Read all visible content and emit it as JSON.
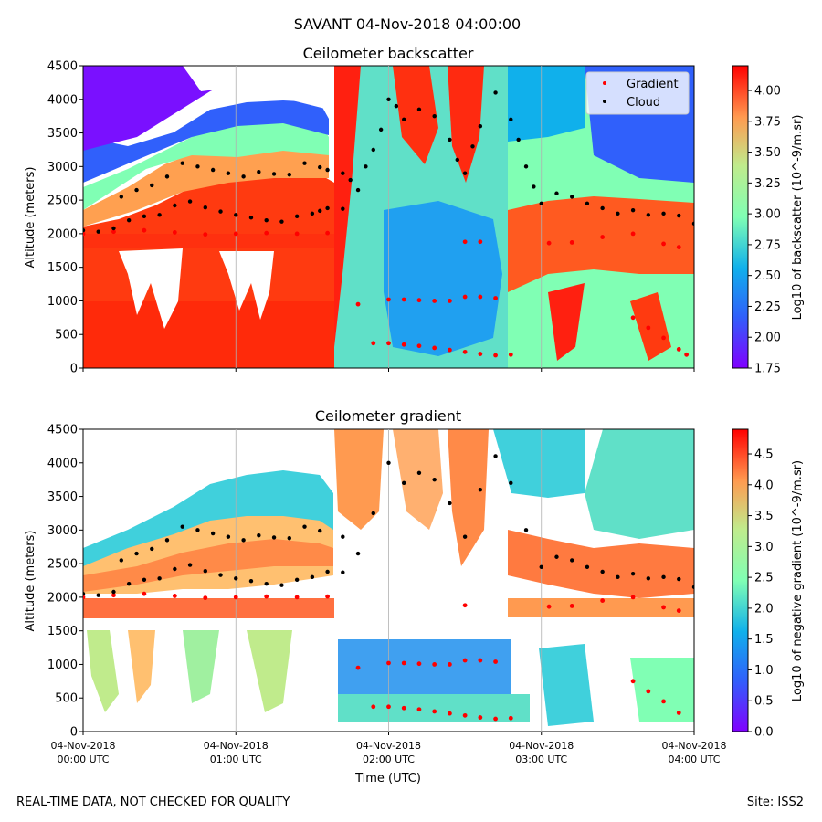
{
  "figure": {
    "suptitle": "SAVANT 04-Nov-2018 04:00:00",
    "footer_left": "REAL-TIME DATA, NOT CHECKED FOR QUALITY",
    "footer_right": "Site: ISS2"
  },
  "chart_data": [
    {
      "type": "heatmap",
      "title": "Ceilometer backscatter",
      "xlabel": "",
      "ylabel": "Altitude (meters)",
      "ylim": [
        0,
        4500
      ],
      "y_ticks": [
        "0",
        "500",
        "1000",
        "1500",
        "2000",
        "2500",
        "3000",
        "3500",
        "4000",
        "4500"
      ],
      "x_ticks": [
        {
          "date": "04-Nov-2018",
          "time": "00:00 UTC"
        },
        {
          "date": "04-Nov-2018",
          "time": "01:00 UTC"
        },
        {
          "date": "04-Nov-2018",
          "time": "02:00 UTC"
        },
        {
          "date": "04-Nov-2018",
          "time": "03:00 UTC"
        },
        {
          "date": "04-Nov-2018",
          "time": "04:00 UTC"
        }
      ],
      "xlim_hours_utc": [
        0,
        4
      ],
      "grid": "vertical lines at hourly ticks",
      "colorbar": {
        "label": "Log10 of backscatter (10^-9/m.sr)",
        "range": [
          1.75,
          4.2
        ],
        "ticks": [
          "1.75",
          "2.00",
          "2.25",
          "2.50",
          "2.75",
          "3.00",
          "3.25",
          "3.50",
          "3.75",
          "4.00"
        ],
        "colormap": "rainbow"
      },
      "legend": {
        "placement": "top-right",
        "entries": [
          {
            "label": "Gradient",
            "color": "#ff0000"
          },
          {
            "label": "Cloud",
            "color": "#000000"
          }
        ]
      },
      "series": [
        {
          "name": "Cloud",
          "color": "#000000",
          "points": [
            [
              0.0,
              2050
            ],
            [
              0.1,
              2030
            ],
            [
              0.2,
              2080
            ],
            [
              0.3,
              2200
            ],
            [
              0.4,
              2260
            ],
            [
              0.5,
              2280
            ],
            [
              0.6,
              2420
            ],
            [
              0.7,
              2480
            ],
            [
              0.8,
              2390
            ],
            [
              0.9,
              2330
            ],
            [
              1.0,
              2280
            ],
            [
              1.1,
              2240
            ],
            [
              1.2,
              2200
            ],
            [
              1.3,
              2180
            ],
            [
              1.4,
              2260
            ],
            [
              1.5,
              2300
            ],
            [
              1.55,
              2340
            ],
            [
              1.6,
              2380
            ],
            [
              1.7,
              2370
            ],
            [
              0.25,
              2550
            ],
            [
              0.35,
              2650
            ],
            [
              0.45,
              2720
            ],
            [
              0.55,
              2850
            ],
            [
              0.65,
              3050
            ],
            [
              0.75,
              3000
            ],
            [
              0.85,
              2950
            ],
            [
              0.95,
              2900
            ],
            [
              1.05,
              2850
            ],
            [
              1.15,
              2920
            ],
            [
              1.25,
              2890
            ],
            [
              1.35,
              2880
            ],
            [
              1.45,
              3050
            ],
            [
              1.55,
              2990
            ],
            [
              1.6,
              2950
            ],
            [
              1.7,
              2900
            ],
            [
              1.75,
              2800
            ],
            [
              1.8,
              2650
            ],
            [
              1.85,
              3000
            ],
            [
              1.9,
              3250
            ],
            [
              1.95,
              3550
            ],
            [
              2.0,
              4000
            ],
            [
              2.05,
              3900
            ],
            [
              2.1,
              3700
            ],
            [
              2.2,
              3850
            ],
            [
              2.3,
              3750
            ],
            [
              2.4,
              3400
            ],
            [
              2.45,
              3100
            ],
            [
              2.5,
              2900
            ],
            [
              2.55,
              3300
            ],
            [
              2.6,
              3600
            ],
            [
              2.7,
              4100
            ],
            [
              2.8,
              3700
            ],
            [
              2.85,
              3400
            ],
            [
              2.9,
              3000
            ],
            [
              2.95,
              2700
            ],
            [
              3.0,
              2450
            ],
            [
              3.1,
              2600
            ],
            [
              3.2,
              2550
            ],
            [
              3.3,
              2450
            ],
            [
              3.4,
              2380
            ],
            [
              3.5,
              2300
            ],
            [
              3.6,
              2350
            ],
            [
              3.7,
              2280
            ],
            [
              3.8,
              2300
            ],
            [
              3.9,
              2270
            ],
            [
              4.0,
              2150
            ]
          ]
        },
        {
          "name": "Gradient",
          "color": "#ff0000",
          "points": [
            [
              0.0,
              2000
            ],
            [
              0.2,
              2030
            ],
            [
              0.4,
              2050
            ],
            [
              0.6,
              2020
            ],
            [
              0.8,
              1990
            ],
            [
              1.0,
              2000
            ],
            [
              1.2,
              2010
            ],
            [
              1.4,
              2000
            ],
            [
              1.6,
              2010
            ],
            [
              1.8,
              950
            ],
            [
              2.0,
              1020
            ],
            [
              2.1,
              1020
            ],
            [
              2.2,
              1010
            ],
            [
              2.3,
              1000
            ],
            [
              2.4,
              1000
            ],
            [
              2.5,
              1060
            ],
            [
              2.6,
              1060
            ],
            [
              2.7,
              1040
            ],
            [
              1.9,
              370
            ],
            [
              2.0,
              370
            ],
            [
              2.1,
              350
            ],
            [
              2.2,
              330
            ],
            [
              2.3,
              300
            ],
            [
              2.4,
              270
            ],
            [
              2.5,
              240
            ],
            [
              2.6,
              210
            ],
            [
              2.7,
              190
            ],
            [
              2.8,
              200
            ],
            [
              2.5,
              1880
            ],
            [
              2.6,
              1880
            ],
            [
              3.05,
              1860
            ],
            [
              3.2,
              1870
            ],
            [
              3.4,
              1950
            ],
            [
              3.6,
              2000
            ],
            [
              3.8,
              1850
            ],
            [
              3.9,
              1800
            ],
            [
              3.6,
              750
            ],
            [
              3.7,
              600
            ],
            [
              3.8,
              450
            ],
            [
              3.9,
              280
            ],
            [
              3.95,
              200
            ]
          ]
        }
      ]
    },
    {
      "type": "heatmap",
      "title": "Ceilometer gradient",
      "xlabel": "Time (UTC)",
      "ylabel": "Altitude (meters)",
      "ylim": [
        0,
        4500
      ],
      "y_ticks": [
        "0",
        "500",
        "1000",
        "1500",
        "2000",
        "2500",
        "3000",
        "3500",
        "4000",
        "4500"
      ],
      "x_ticks": [
        {
          "date": "04-Nov-2018",
          "time": "00:00 UTC"
        },
        {
          "date": "04-Nov-2018",
          "time": "01:00 UTC"
        },
        {
          "date": "04-Nov-2018",
          "time": "02:00 UTC"
        },
        {
          "date": "04-Nov-2018",
          "time": "03:00 UTC"
        },
        {
          "date": "04-Nov-2018",
          "time": "04:00 UTC"
        }
      ],
      "xlim_hours_utc": [
        0,
        4
      ],
      "grid": "vertical lines at hourly ticks",
      "colorbar": {
        "label": "Log10 of negative gradient (10^-9/m.sr)",
        "range": [
          0.0,
          4.9
        ],
        "ticks": [
          "0.0",
          "0.5",
          "1.0",
          "1.5",
          "2.0",
          "2.5",
          "3.0",
          "3.5",
          "4.0",
          "4.5"
        ],
        "colormap": "rainbow"
      },
      "series": [
        {
          "name": "Cloud",
          "color": "#000000",
          "points": [
            [
              0.0,
              2050
            ],
            [
              0.1,
              2030
            ],
            [
              0.2,
              2080
            ],
            [
              0.3,
              2200
            ],
            [
              0.4,
              2260
            ],
            [
              0.5,
              2280
            ],
            [
              0.6,
              2420
            ],
            [
              0.7,
              2480
            ],
            [
              0.8,
              2390
            ],
            [
              0.9,
              2330
            ],
            [
              1.0,
              2280
            ],
            [
              1.1,
              2240
            ],
            [
              1.2,
              2200
            ],
            [
              1.3,
              2180
            ],
            [
              1.4,
              2260
            ],
            [
              1.5,
              2300
            ],
            [
              1.6,
              2380
            ],
            [
              1.7,
              2370
            ],
            [
              0.25,
              2550
            ],
            [
              0.35,
              2650
            ],
            [
              0.45,
              2720
            ],
            [
              0.55,
              2850
            ],
            [
              0.65,
              3050
            ],
            [
              0.75,
              3000
            ],
            [
              0.85,
              2950
            ],
            [
              0.95,
              2900
            ],
            [
              1.05,
              2850
            ],
            [
              1.15,
              2920
            ],
            [
              1.25,
              2890
            ],
            [
              1.35,
              2880
            ],
            [
              1.45,
              3050
            ],
            [
              1.55,
              2990
            ],
            [
              1.7,
              2900
            ],
            [
              1.8,
              2650
            ],
            [
              1.9,
              3250
            ],
            [
              2.0,
              4000
            ],
            [
              2.1,
              3700
            ],
            [
              2.2,
              3850
            ],
            [
              2.3,
              3750
            ],
            [
              2.4,
              3400
            ],
            [
              2.5,
              2900
            ],
            [
              2.6,
              3600
            ],
            [
              2.7,
              4100
            ],
            [
              2.8,
              3700
            ],
            [
              2.9,
              3000
            ],
            [
              3.0,
              2450
            ],
            [
              3.1,
              2600
            ],
            [
              3.2,
              2550
            ],
            [
              3.3,
              2450
            ],
            [
              3.4,
              2380
            ],
            [
              3.5,
              2300
            ],
            [
              3.6,
              2350
            ],
            [
              3.7,
              2280
            ],
            [
              3.8,
              2300
            ],
            [
              3.9,
              2270
            ],
            [
              4.0,
              2150
            ]
          ]
        },
        {
          "name": "Gradient",
          "color": "#ff0000",
          "points": [
            [
              0.0,
              2000
            ],
            [
              0.2,
              2030
            ],
            [
              0.4,
              2050
            ],
            [
              0.6,
              2020
            ],
            [
              0.8,
              1990
            ],
            [
              1.0,
              2000
            ],
            [
              1.2,
              2010
            ],
            [
              1.4,
              2000
            ],
            [
              1.6,
              2010
            ],
            [
              1.8,
              950
            ],
            [
              2.0,
              1020
            ],
            [
              2.1,
              1020
            ],
            [
              2.2,
              1010
            ],
            [
              2.3,
              1000
            ],
            [
              2.4,
              1000
            ],
            [
              2.5,
              1060
            ],
            [
              2.6,
              1060
            ],
            [
              2.7,
              1040
            ],
            [
              1.9,
              370
            ],
            [
              2.0,
              370
            ],
            [
              2.1,
              350
            ],
            [
              2.2,
              330
            ],
            [
              2.3,
              300
            ],
            [
              2.4,
              270
            ],
            [
              2.5,
              240
            ],
            [
              2.6,
              210
            ],
            [
              2.7,
              190
            ],
            [
              2.8,
              200
            ],
            [
              2.5,
              1880
            ],
            [
              3.05,
              1860
            ],
            [
              3.2,
              1870
            ],
            [
              3.4,
              1950
            ],
            [
              3.6,
              2000
            ],
            [
              3.8,
              1850
            ],
            [
              3.9,
              1800
            ],
            [
              3.6,
              750
            ],
            [
              3.7,
              600
            ],
            [
              3.8,
              450
            ],
            [
              3.9,
              280
            ]
          ]
        }
      ]
    }
  ]
}
